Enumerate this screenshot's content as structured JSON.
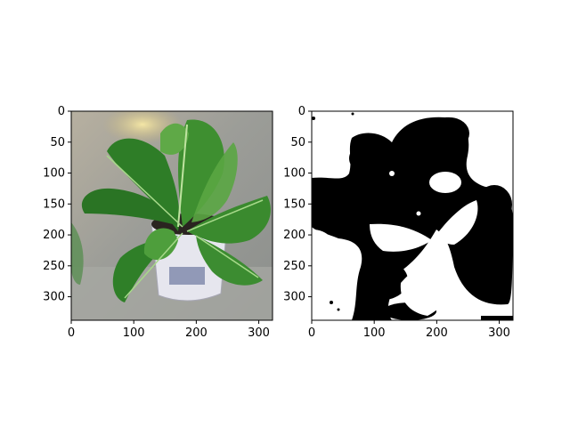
{
  "figure": {
    "panels": [
      {
        "id": "left",
        "description_kind": "photo-plant",
        "xticks": [
          "0",
          "100",
          "200",
          "300"
        ],
        "yticks": [
          "0",
          "50",
          "100",
          "150",
          "200",
          "250",
          "300"
        ],
        "xlim": [
          0,
          322
        ],
        "ylim": [
          0,
          338
        ]
      },
      {
        "id": "right",
        "description_kind": "binary-mask",
        "xticks": [
          "0",
          "100",
          "200",
          "300"
        ],
        "yticks": [
          "0",
          "50",
          "100",
          "150",
          "200",
          "250",
          "300"
        ],
        "xlim": [
          0,
          322
        ],
        "ylim": [
          0,
          338
        ]
      }
    ]
  },
  "colors": {
    "leaf_dark": "#1f5a1c",
    "leaf_mid": "#2e7d27",
    "leaf_light": "#6fb04a",
    "background_gray": "#9a9a98",
    "pot_white": "#e8e8ee",
    "soil": "#2a2420",
    "mask_black": "#000000",
    "mask_white": "#ffffff"
  }
}
